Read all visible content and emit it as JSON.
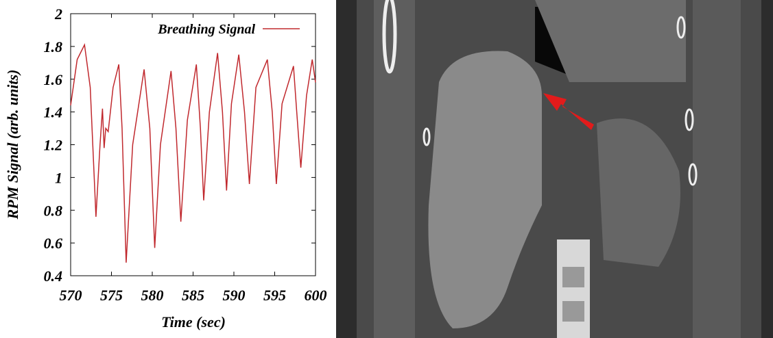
{
  "chart_data": {
    "type": "line",
    "xlabel": "Time (sec)",
    "ylabel": "RPM Signal (arb. units)",
    "xlim": [
      570,
      600
    ],
    "xticks": [
      570,
      575,
      580,
      585,
      590,
      595,
      600
    ],
    "ylim": [
      0.4,
      2
    ],
    "yticks": [
      0.4,
      0.6,
      0.8,
      1,
      1.2,
      1.4,
      1.6,
      1.8,
      2
    ],
    "legend": "top-right",
    "x": [
      570,
      570.8,
      571.7,
      572.4,
      573.1,
      573.6,
      573.9,
      574.1,
      574.3,
      574.6,
      575.2,
      575.9,
      576.3,
      576.8,
      577.6,
      579.0,
      579.7,
      580.3,
      581.0,
      582.3,
      582.9,
      583.5,
      584.3,
      585.4,
      585.9,
      586.3,
      587.0,
      588.0,
      588.6,
      589.1,
      589.7,
      590.6,
      591.3,
      591.9,
      592.7,
      594.1,
      594.7,
      595.2,
      595.9,
      597.3,
      597.7,
      598.2,
      598.9,
      599.6,
      600
    ],
    "series": [
      {
        "name": "Breathing Signal",
        "color": "#c0282d",
        "values": [
          1.44,
          1.72,
          1.81,
          1.55,
          0.76,
          1.2,
          1.42,
          1.18,
          1.3,
          1.28,
          1.55,
          1.69,
          1.3,
          0.48,
          1.2,
          1.66,
          1.3,
          0.57,
          1.2,
          1.65,
          1.3,
          0.73,
          1.35,
          1.69,
          1.3,
          0.86,
          1.4,
          1.76,
          1.4,
          0.92,
          1.45,
          1.75,
          1.4,
          0.96,
          1.55,
          1.72,
          1.4,
          0.96,
          1.45,
          1.68,
          1.4,
          1.06,
          1.5,
          1.72,
          1.58
        ]
      }
    ]
  }
}
